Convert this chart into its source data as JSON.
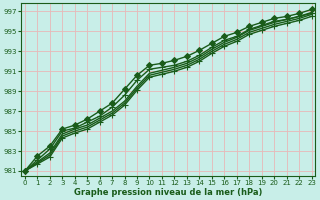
{
  "xlabel": "Graphe pression niveau de la mer (hPa)",
  "bg_color": "#c8eee8",
  "grid_color": "#e8b8b8",
  "line_color": "#1a5c1a",
  "linewidth": 1.0,
  "ylim": [
    980.5,
    997.8
  ],
  "xlim": [
    -0.3,
    23.3
  ],
  "yticks": [
    981,
    983,
    985,
    987,
    989,
    991,
    993,
    995,
    997
  ],
  "xticks": [
    0,
    1,
    2,
    3,
    4,
    5,
    6,
    7,
    8,
    9,
    10,
    11,
    12,
    13,
    14,
    15,
    16,
    17,
    18,
    19,
    20,
    21,
    22,
    23
  ],
  "series": [
    {
      "values": [
        981.0,
        981.9,
        982.8,
        984.7,
        985.2,
        985.6,
        986.3,
        987.0,
        988.0,
        989.5,
        990.8,
        991.1,
        991.4,
        991.8,
        992.4,
        993.2,
        993.9,
        994.4,
        995.1,
        995.5,
        995.9,
        996.2,
        996.5,
        996.9
      ],
      "marker": null,
      "markersize": 0
    },
    {
      "values": [
        981.0,
        981.8,
        982.6,
        984.5,
        985.0,
        985.4,
        986.1,
        986.8,
        987.8,
        989.3,
        990.6,
        990.9,
        991.2,
        991.6,
        992.2,
        993.0,
        993.7,
        994.2,
        994.9,
        995.3,
        995.7,
        996.0,
        996.3,
        996.7
      ],
      "marker": null,
      "markersize": 0
    },
    {
      "values": [
        981.0,
        981.7,
        982.4,
        984.3,
        984.8,
        985.2,
        985.9,
        986.6,
        987.6,
        989.1,
        990.4,
        990.7,
        991.0,
        991.4,
        992.0,
        992.8,
        993.5,
        994.0,
        994.7,
        995.1,
        995.5,
        995.8,
        996.1,
        996.5
      ],
      "marker": "+",
      "markersize": 4
    },
    {
      "values": [
        981.0,
        982.1,
        983.2,
        985.0,
        985.3,
        985.9,
        986.5,
        987.4,
        988.6,
        990.1,
        991.2,
        991.4,
        991.6,
        992.0,
        992.6,
        993.4,
        994.1,
        994.5,
        995.2,
        995.6,
        996.0,
        996.2,
        996.5,
        996.8
      ],
      "marker": "+",
      "markersize": 4
    },
    {
      "values": [
        981.0,
        982.5,
        983.5,
        985.2,
        985.6,
        986.2,
        987.0,
        987.8,
        989.2,
        990.6,
        991.6,
        991.8,
        992.1,
        992.5,
        993.1,
        993.8,
        994.5,
        994.9,
        995.5,
        995.9,
        996.3,
        996.5,
        996.8,
        997.2
      ],
      "marker": "D",
      "markersize": 3
    }
  ]
}
